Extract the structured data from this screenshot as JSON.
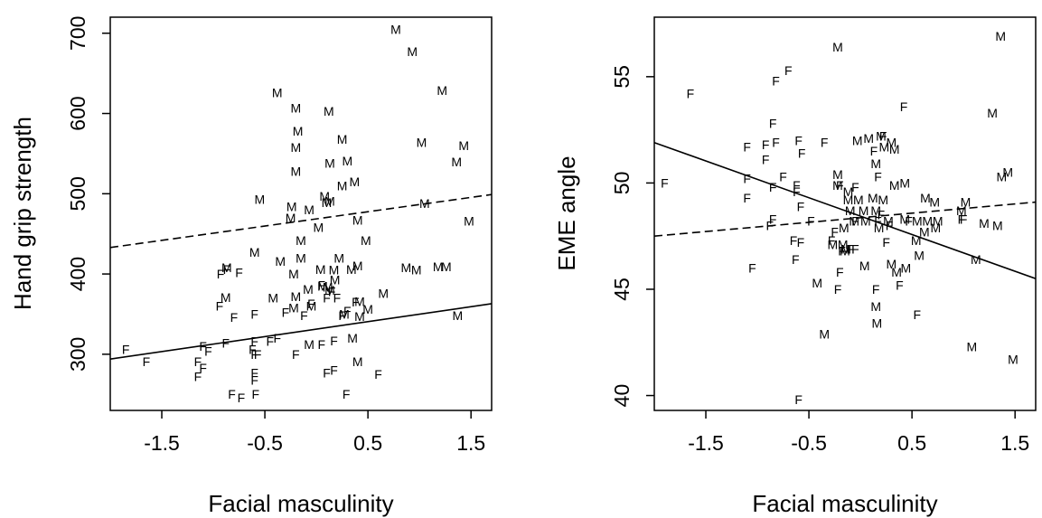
{
  "chart_data": [
    {
      "type": "scatter",
      "title": "",
      "xlabel": "Facial masculinity",
      "ylabel": "Hand grip strength",
      "xlim": [
        -2.0,
        1.7
      ],
      "ylim": [
        230,
        720
      ],
      "x_ticks": [
        -1.5,
        -0.5,
        0.5,
        1.5
      ],
      "x_tick_labels": [
        "-1.5",
        "-0.5",
        "0.5",
        "1.5"
      ],
      "y_ticks": [
        300,
        400,
        500,
        600,
        700
      ],
      "y_tick_labels": [
        "300",
        "400",
        "500",
        "600",
        "700"
      ],
      "grid": false,
      "series": [
        {
          "name": "M",
          "points": [
            [
              -0.38,
              626
            ],
            [
              -0.2,
              607
            ],
            [
              0.12,
              603
            ],
            [
              -0.18,
              578
            ],
            [
              -0.2,
              558
            ],
            [
              0.25,
              568
            ],
            [
              0.3,
              541
            ],
            [
              0.13,
              538
            ],
            [
              -0.2,
              528
            ],
            [
              0.25,
              510
            ],
            [
              0.37,
              515
            ],
            [
              -0.55,
              493
            ],
            [
              0.08,
              497
            ],
            [
              0.13,
              491
            ],
            [
              0.1,
              489
            ],
            [
              -0.24,
              484
            ],
            [
              -0.07,
              480
            ],
            [
              -0.25,
              470
            ],
            [
              0.4,
              467
            ],
            [
              0.02,
              458
            ],
            [
              -0.15,
              442
            ],
            [
              0.48,
              442
            ],
            [
              -0.6,
              427
            ],
            [
              -0.35,
              416
            ],
            [
              -0.15,
              420
            ],
            [
              0.22,
              420
            ],
            [
              0.4,
              410
            ],
            [
              0.04,
              406
            ],
            [
              -0.87,
              408
            ],
            [
              0.34,
              406
            ],
            [
              0.17,
              405
            ],
            [
              -0.22,
              400
            ],
            [
              0.18,
              393
            ],
            [
              0.06,
              385
            ],
            [
              0.11,
              384
            ],
            [
              -0.08,
              381
            ],
            [
              0.13,
              380
            ],
            [
              -0.42,
              370
            ],
            [
              -0.2,
              372
            ],
            [
              -0.05,
              360
            ],
            [
              0.42,
              366
            ],
            [
              0.65,
              376
            ],
            [
              -0.88,
              371
            ],
            [
              0.5,
              356
            ],
            [
              -0.22,
              358
            ],
            [
              0.42,
              347
            ],
            [
              0.35,
              320
            ],
            [
              0.4,
              291
            ],
            [
              0.27,
              350
            ],
            [
              -0.07,
              312
            ],
            [
              0.87,
              408
            ],
            [
              0.97,
              405
            ],
            [
              1.18,
              409
            ],
            [
              1.26,
              409
            ],
            [
              1.37,
              348
            ],
            [
              1.05,
              488
            ],
            [
              1.36,
              540
            ],
            [
              1.43,
              560
            ],
            [
              1.48,
              466
            ],
            [
              1.02,
              564
            ],
            [
              1.22,
              629
            ],
            [
              0.93,
              677
            ],
            [
              0.77,
              705
            ]
          ]
        },
        {
          "name": "F",
          "points": [
            [
              -1.85,
              306
            ],
            [
              -1.65,
              291
            ],
            [
              -0.93,
              400
            ],
            [
              -0.87,
              406
            ],
            [
              -0.75,
              402
            ],
            [
              -0.94,
              360
            ],
            [
              -0.8,
              346
            ],
            [
              -0.6,
              350
            ],
            [
              -0.3,
              352
            ],
            [
              -0.12,
              348
            ],
            [
              -0.05,
              363
            ],
            [
              0.1,
              370
            ],
            [
              0.15,
              378
            ],
            [
              0.2,
              370
            ],
            [
              0.05,
              386
            ],
            [
              0.25,
              348
            ],
            [
              0.3,
              354
            ],
            [
              0.38,
              365
            ],
            [
              -1.1,
              310
            ],
            [
              -1.05,
              304
            ],
            [
              -1.15,
              291
            ],
            [
              -1.1,
              283
            ],
            [
              -1.15,
              272
            ],
            [
              -0.82,
              250
            ],
            [
              -0.73,
              246
            ],
            [
              -0.59,
              250
            ],
            [
              -0.6,
              268
            ],
            [
              -0.6,
              277
            ],
            [
              -0.6,
              300
            ],
            [
              -0.62,
              306
            ],
            [
              -0.57,
              300
            ],
            [
              -0.45,
              316
            ],
            [
              -0.38,
              320
            ],
            [
              -0.2,
              300
            ],
            [
              0.05,
              312
            ],
            [
              0.17,
              317
            ],
            [
              0.1,
              277
            ],
            [
              0.17,
              280
            ],
            [
              0.29,
              250
            ],
            [
              0.6,
              275
            ],
            [
              -0.88,
              314
            ],
            [
              -0.6,
              316
            ]
          ]
        }
      ],
      "fit_lines": [
        {
          "name": "",
          "style": "solid",
          "x": [
            -2.0,
            1.7
          ],
          "y": [
            294,
            363
          ]
        },
        {
          "name": "",
          "style": "dashed",
          "x": [
            -2.0,
            1.7
          ],
          "y": [
            433,
            499
          ]
        }
      ]
    },
    {
      "type": "scatter",
      "title": "",
      "xlabel": "Facial masculinity",
      "ylabel": "EME angle",
      "xlim": [
        -2.0,
        1.7
      ],
      "ylim": [
        39.3,
        57.8
      ],
      "x_ticks": [
        -1.5,
        -0.5,
        0.5,
        1.5
      ],
      "x_tick_labels": [
        "-1.5",
        "-0.5",
        "0.5",
        "1.5"
      ],
      "y_ticks": [
        40,
        45,
        50,
        55
      ],
      "y_tick_labels": [
        "40",
        "45",
        "50",
        "55"
      ],
      "grid": false,
      "series": [
        {
          "name": "M",
          "points": [
            [
              -0.22,
              56.4
            ],
            [
              1.36,
              56.9
            ],
            [
              1.28,
              53.3
            ],
            [
              -0.22,
              50.4
            ],
            [
              -0.22,
              49.9
            ],
            [
              -0.12,
              49.6
            ],
            [
              -0.12,
              49.2
            ],
            [
              -0.02,
              49.2
            ],
            [
              0.12,
              49.3
            ],
            [
              0.22,
              49.2
            ],
            [
              -0.1,
              48.7
            ],
            [
              0.03,
              48.7
            ],
            [
              0.15,
              48.7
            ],
            [
              -0.06,
              48.2
            ],
            [
              0.05,
              48.2
            ],
            [
              -0.16,
              47.9
            ],
            [
              0.18,
              47.9
            ],
            [
              0.27,
              48.2
            ],
            [
              0.43,
              48.3
            ],
            [
              0.55,
              48.2
            ],
            [
              0.65,
              48.2
            ],
            [
              0.75,
              48.2
            ],
            [
              0.62,
              47.7
            ],
            [
              0.54,
              47.3
            ],
            [
              0.73,
              47.9
            ],
            [
              0.72,
              49.1
            ],
            [
              1.02,
              49.1
            ],
            [
              0.98,
              48.7
            ],
            [
              1.2,
              48.1
            ],
            [
              1.33,
              48.0
            ],
            [
              1.37,
              50.3
            ],
            [
              1.43,
              50.5
            ],
            [
              1.08,
              42.3
            ],
            [
              1.48,
              41.7
            ],
            [
              -0.27,
              47.1
            ],
            [
              -0.17,
              47.1
            ],
            [
              -0.15,
              46.8
            ],
            [
              -0.42,
              45.3
            ],
            [
              -0.14,
              46.9
            ],
            [
              0.04,
              46.1
            ],
            [
              0.3,
              46.2
            ],
            [
              0.35,
              45.8
            ],
            [
              0.44,
              46.0
            ],
            [
              0.57,
              46.6
            ],
            [
              -0.35,
              42.9
            ],
            [
              0.15,
              44.2
            ],
            [
              0.16,
              43.4
            ],
            [
              1.12,
              46.4
            ],
            [
              0.63,
              49.3
            ],
            [
              0.33,
              49.9
            ],
            [
              0.43,
              50.0
            ],
            [
              0.08,
              52.1
            ],
            [
              0.2,
              52.2
            ],
            [
              0.3,
              51.9
            ],
            [
              0.33,
              51.6
            ],
            [
              -0.03,
              52.0
            ],
            [
              0.15,
              50.9
            ],
            [
              0.23,
              51.7
            ]
          ]
        },
        {
          "name": "F",
          "points": [
            [
              -1.9,
              50.0
            ],
            [
              -1.65,
              54.2
            ],
            [
              -0.82,
              54.8
            ],
            [
              -0.7,
              55.3
            ],
            [
              -0.85,
              52.8
            ],
            [
              -1.1,
              51.7
            ],
            [
              -0.92,
              51.8
            ],
            [
              -0.82,
              51.9
            ],
            [
              -0.6,
              52.0
            ],
            [
              -0.35,
              51.9
            ],
            [
              -0.92,
              51.1
            ],
            [
              -0.57,
              51.4
            ],
            [
              -1.1,
              50.2
            ],
            [
              -1.1,
              49.3
            ],
            [
              -0.85,
              49.8
            ],
            [
              -0.75,
              50.3
            ],
            [
              -0.62,
              49.6
            ],
            [
              -0.62,
              49.9
            ],
            [
              -0.2,
              49.9
            ],
            [
              -0.05,
              49.8
            ],
            [
              0.17,
              50.3
            ],
            [
              -0.58,
              48.9
            ],
            [
              -0.85,
              48.3
            ],
            [
              -0.88,
              48.0
            ],
            [
              -0.48,
              48.2
            ],
            [
              -0.25,
              47.7
            ],
            [
              -0.05,
              48.2
            ],
            [
              0.2,
              48.5
            ],
            [
              0.17,
              48.2
            ],
            [
              0.28,
              48.0
            ],
            [
              -0.58,
              47.2
            ],
            [
              -0.28,
              47.3
            ],
            [
              -0.18,
              46.8
            ],
            [
              -0.1,
              46.9
            ],
            [
              -0.05,
              46.9
            ],
            [
              0.25,
              47.2
            ],
            [
              -1.05,
              46.0
            ],
            [
              -0.63,
              46.4
            ],
            [
              -0.2,
              45.8
            ],
            [
              -0.22,
              45.0
            ],
            [
              0.15,
              45.0
            ],
            [
              0.38,
              45.2
            ],
            [
              0.55,
              43.8
            ],
            [
              -0.6,
              39.8
            ],
            [
              0.47,
              48.2
            ],
            [
              0.98,
              48.3
            ],
            [
              1.0,
              48.3
            ],
            [
              0.42,
              53.6
            ],
            [
              0.22,
              52.2
            ],
            [
              0.13,
              51.5
            ],
            [
              -0.65,
              47.3
            ]
          ]
        }
      ],
      "fit_lines": [
        {
          "name": "",
          "style": "solid",
          "x": [
            -2.0,
            1.7
          ],
          "y": [
            51.9,
            45.5
          ]
        },
        {
          "name": "",
          "style": "dashed",
          "x": [
            -2.0,
            1.7
          ],
          "y": [
            47.5,
            49.1
          ]
        }
      ]
    }
  ]
}
